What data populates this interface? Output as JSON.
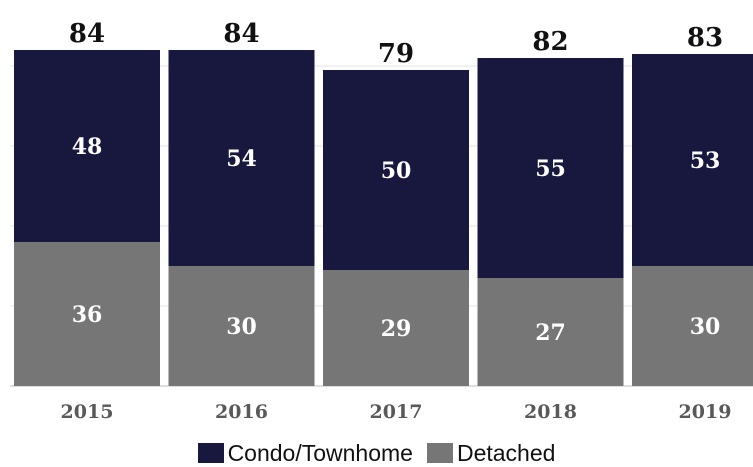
{
  "chart_data": {
    "type": "bar",
    "stacked": true,
    "categories": [
      "2015",
      "2016",
      "2017",
      "2018",
      "2019"
    ],
    "series": [
      {
        "name": "Detached",
        "values": [
          36,
          30,
          29,
          27,
          30
        ],
        "color": "#767676"
      },
      {
        "name": "Condo/Townhome",
        "values": [
          48,
          54,
          50,
          55,
          53
        ],
        "color": "#18183f"
      }
    ],
    "totals": [
      84,
      84,
      79,
      82,
      83
    ],
    "title": "",
    "xlabel": "",
    "ylabel": "",
    "ylim": [
      0,
      95
    ],
    "grid": true,
    "legend_position": "bottom"
  }
}
